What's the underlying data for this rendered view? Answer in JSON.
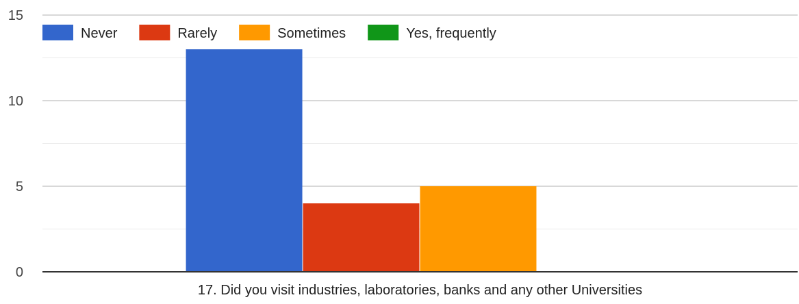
{
  "chart_data": {
    "type": "bar",
    "categories": [
      "17. Did you visit industries, laboratories, banks and any other Universities"
    ],
    "series": [
      {
        "name": "Never",
        "color": "#3366cc",
        "values": [
          13
        ]
      },
      {
        "name": "Rarely",
        "color": "#dc3912",
        "values": [
          4
        ]
      },
      {
        "name": "Sometimes",
        "color": "#ff9900",
        "values": [
          5
        ]
      },
      {
        "name": "Yes, frequently",
        "color": "#109618",
        "values": [
          0
        ]
      }
    ],
    "ylim": [
      0,
      15
    ],
    "yticks": [
      0,
      5,
      10,
      15
    ],
    "grid": true,
    "legend_position": "top-left"
  }
}
